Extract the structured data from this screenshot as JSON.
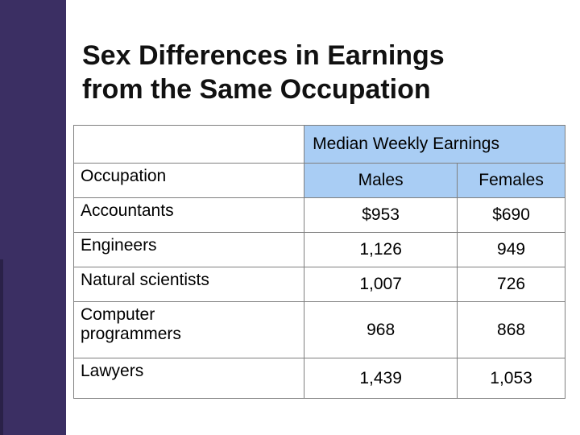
{
  "slide": {
    "title_line1": "Sex Differences in Earnings",
    "title_line2": "from the Same Occupation"
  },
  "table": {
    "group_header": "Median Weekly Earnings",
    "occupation_header": "Occupation",
    "males_header": "Males",
    "females_header": "Females",
    "rows": [
      {
        "occupation": "Accountants",
        "males": "$953",
        "females": "$690"
      },
      {
        "occupation": "Engineers",
        "males": "1,126",
        "females": "949"
      },
      {
        "occupation": "Natural scientists",
        "males": "1,007",
        "females": "726"
      },
      {
        "occupation_line1": "Computer",
        "occupation_line2": "programmers",
        "males": "968",
        "females": "868"
      },
      {
        "occupation": "Lawyers",
        "males": "1,439",
        "females": "1,053"
      }
    ]
  },
  "colors": {
    "sidebar": "#3b2f63",
    "header_fill": "#a9cdf4"
  }
}
